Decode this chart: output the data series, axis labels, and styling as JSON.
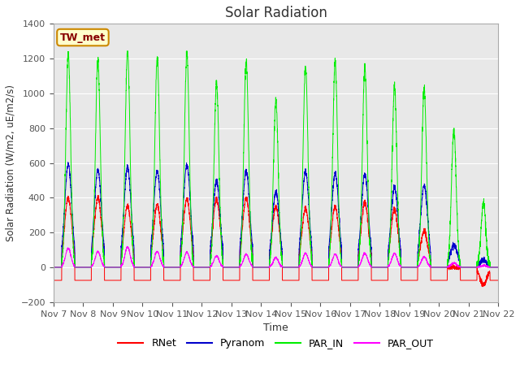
{
  "title": "Solar Radiation",
  "ylabel": "Solar Radiation (W/m2, uE/m2/s)",
  "xlabel": "Time",
  "ylim": [
    -200,
    1400
  ],
  "background_color": "#ffffff",
  "plot_bg_color": "#e8e8e8",
  "station_label": "TW_met",
  "tick_labels": [
    "Nov 7",
    "Nov 8",
    "Nov 9",
    "Nov 10",
    "Nov 11",
    "Nov 12",
    "Nov 13",
    "Nov 14",
    "Nov 15",
    "Nov 16",
    "Nov 17",
    "Nov 18",
    "Nov 19",
    "Nov 20",
    "Nov 21",
    "Nov 22"
  ],
  "colors": {
    "RNet": "#ff0000",
    "Pyranom": "#0000cc",
    "PAR_IN": "#00ee00",
    "PAR_OUT": "#ff00ff"
  },
  "par_in_peaks": [
    1230,
    1190,
    1240,
    1195,
    1230,
    1065,
    1185,
    960,
    1155,
    1175,
    1155,
    1035,
    1025,
    790,
    370
  ],
  "pyranom_peaks": [
    590,
    560,
    575,
    555,
    590,
    500,
    555,
    435,
    550,
    540,
    535,
    460,
    470,
    130,
    40
  ],
  "rnet_peaks": [
    400,
    400,
    355,
    360,
    395,
    395,
    400,
    350,
    340,
    350,
    375,
    335,
    205,
    0,
    -100
  ],
  "par_out_peaks": [
    110,
    90,
    115,
    90,
    85,
    65,
    75,
    55,
    80,
    75,
    80,
    80,
    60,
    25,
    10
  ],
  "n_days": 15,
  "night_rnet": -75,
  "legend_labels": [
    "RNet",
    "Pyranom",
    "PAR_IN",
    "PAR_OUT"
  ]
}
